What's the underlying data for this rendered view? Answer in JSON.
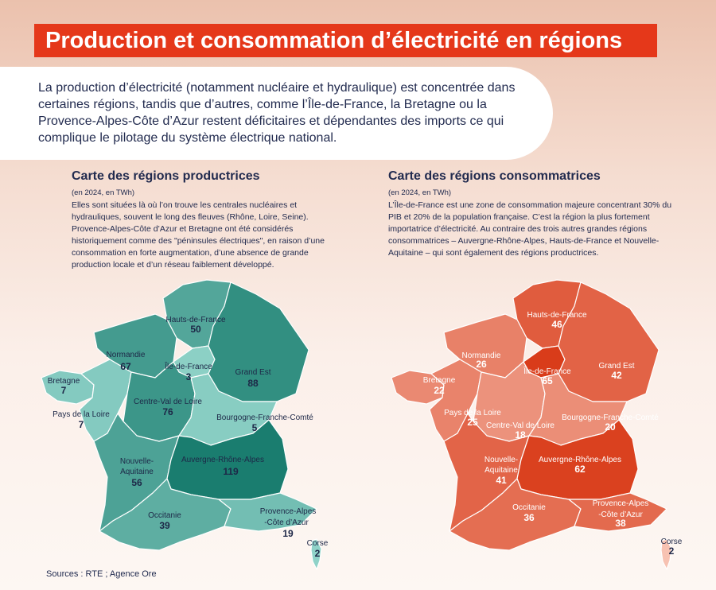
{
  "title": "Production et consommation d’électricité en régions",
  "intro": "La production d’électricité (notamment nucléaire et hydraulique) est concentrée dans certaines régions, tandis que d’autres, comme l’Île-de-France, la Bretagne ou la Provence-Alpes-Côte d’Azur restent déficitaires et dépendantes des imports ce qui complique le pilotage du système électrique national.",
  "sources": "Sources : RTE ; Agence Ore",
  "colors": {
    "accent": "#e5381a",
    "production_light": "#8fd2c8",
    "production_dark": "#1a7d6f",
    "consumption_light": "#f7c2b2",
    "consumption_dark": "#d93c1a"
  },
  "chart_data": [
    {
      "type": "choropleth",
      "title": "Carte des régions productrices",
      "subtitle": "(en 2024, en TWh)",
      "description": "Elles sont situées là où l’on trouve les centrales nucléaires et hydrauliques, souvent le long des fleuves (Rhône, Loire, Seine). Provence-Alpes-Côte d’Azur et Bretagne ont été considérés historiquement comme des \"péninsules électriques\", en raison d’une consommation en forte augmentation, d’une absence de grande production locale et d’un réseau faiblement développé.",
      "regions": [
        {
          "name": "Hauts-de-France",
          "value": 50
        },
        {
          "name": "Normandie",
          "value": 67
        },
        {
          "name": "Île-de-France",
          "value": 3
        },
        {
          "name": "Grand Est",
          "value": 88
        },
        {
          "name": "Bretagne",
          "value": 7
        },
        {
          "name": "Pays de la Loire",
          "value": 7
        },
        {
          "name": "Centre-Val de Loire",
          "value": 76
        },
        {
          "name": "Bourgogne-Franche-Comté",
          "value": 5
        },
        {
          "name": "Nouvelle-Aquitaine",
          "value": 56
        },
        {
          "name": "Auvergne-Rhône-Alpes",
          "value": 119
        },
        {
          "name": "Occitanie",
          "value": 39
        },
        {
          "name": "Provence-Alpes-Côte d’Azur",
          "value": 19
        },
        {
          "name": "Corse",
          "value": 2
        }
      ]
    },
    {
      "type": "choropleth",
      "title": "Carte des régions consommatrices",
      "subtitle": "(en 2024, en TWh)",
      "description": "L’Île-de-France est une zone de consommation majeure concentrant 30% du PIB et 20% de la population française. C’est la région la plus fortement importatrice d’électricité. Au contraire des trois autres grandes régions consommatrices – Auvergne-Rhône-Alpes, Hauts-de-France et Nouvelle-Aquitaine – qui sont également des régions productrices.",
      "regions": [
        {
          "name": "Hauts-de-France",
          "value": 46
        },
        {
          "name": "Normandie",
          "value": 26
        },
        {
          "name": "Île-de-France",
          "value": 65
        },
        {
          "name": "Grand Est",
          "value": 42
        },
        {
          "name": "Bretagne",
          "value": 22
        },
        {
          "name": "Pays de la Loire",
          "value": 25
        },
        {
          "name": "Centre-Val de Loire",
          "value": 18
        },
        {
          "name": "Bourgogne-Franche-Comté",
          "value": 20
        },
        {
          "name": "Nouvelle-Aquitaine",
          "value": 41
        },
        {
          "name": "Auvergne-Rhône-Alpes",
          "value": 62
        },
        {
          "name": "Occitanie",
          "value": 36
        },
        {
          "name": "Provence-Alpes-Côte d’Azur",
          "value": 38
        },
        {
          "name": "Corse",
          "value": 2
        }
      ]
    }
  ]
}
